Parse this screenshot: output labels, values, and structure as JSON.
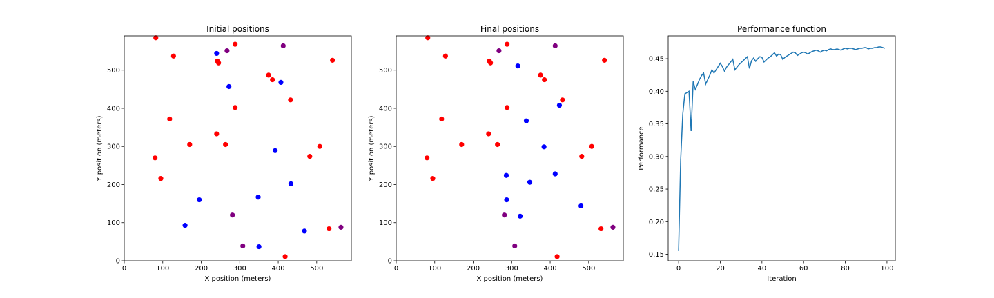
{
  "figure": {
    "background": "#ffffff"
  },
  "colors": {
    "red": "#ff0000",
    "blue": "#0000ff",
    "purple": "#800080",
    "line": "#1f77b4"
  },
  "chart_data": [
    {
      "type": "scatter",
      "title": "Initial positions",
      "xlabel": "X position (meters)",
      "ylabel": "Y position (meters)",
      "xlim": [
        0,
        590
      ],
      "ylim": [
        0,
        590
      ],
      "xticks": [
        0,
        100,
        200,
        300,
        400,
        500
      ],
      "yticks": [
        0,
        100,
        200,
        300,
        400,
        500
      ],
      "grid": false,
      "points": [
        {
          "x": 82,
          "y": 585,
          "color": "red"
        },
        {
          "x": 128,
          "y": 537,
          "color": "red"
        },
        {
          "x": 118,
          "y": 372,
          "color": "red"
        },
        {
          "x": 170,
          "y": 305,
          "color": "red"
        },
        {
          "x": 80,
          "y": 270,
          "color": "red"
        },
        {
          "x": 95,
          "y": 216,
          "color": "red"
        },
        {
          "x": 242,
          "y": 524,
          "color": "red"
        },
        {
          "x": 245,
          "y": 519,
          "color": "red"
        },
        {
          "x": 288,
          "y": 568,
          "color": "red"
        },
        {
          "x": 288,
          "y": 402,
          "color": "red"
        },
        {
          "x": 240,
          "y": 333,
          "color": "red"
        },
        {
          "x": 263,
          "y": 305,
          "color": "red"
        },
        {
          "x": 375,
          "y": 487,
          "color": "red"
        },
        {
          "x": 385,
          "y": 475,
          "color": "red"
        },
        {
          "x": 432,
          "y": 422,
          "color": "red"
        },
        {
          "x": 508,
          "y": 300,
          "color": "red"
        },
        {
          "x": 482,
          "y": 274,
          "color": "red"
        },
        {
          "x": 541,
          "y": 526,
          "color": "red"
        },
        {
          "x": 532,
          "y": 84,
          "color": "red"
        },
        {
          "x": 418,
          "y": 11,
          "color": "red"
        },
        {
          "x": 240,
          "y": 544,
          "color": "blue"
        },
        {
          "x": 272,
          "y": 457,
          "color": "blue"
        },
        {
          "x": 407,
          "y": 468,
          "color": "blue"
        },
        {
          "x": 392,
          "y": 289,
          "color": "blue"
        },
        {
          "x": 433,
          "y": 202,
          "color": "blue"
        },
        {
          "x": 348,
          "y": 167,
          "color": "blue"
        },
        {
          "x": 195,
          "y": 160,
          "color": "blue"
        },
        {
          "x": 158,
          "y": 93,
          "color": "blue"
        },
        {
          "x": 468,
          "y": 78,
          "color": "blue"
        },
        {
          "x": 350,
          "y": 37,
          "color": "blue"
        },
        {
          "x": 267,
          "y": 551,
          "color": "purple"
        },
        {
          "x": 413,
          "y": 564,
          "color": "purple"
        },
        {
          "x": 281,
          "y": 120,
          "color": "purple"
        },
        {
          "x": 308,
          "y": 39,
          "color": "purple"
        },
        {
          "x": 563,
          "y": 88,
          "color": "purple"
        }
      ]
    },
    {
      "type": "scatter",
      "title": "Final positions",
      "xlabel": "X position (meters)",
      "ylabel": "Y position (meters)",
      "xlim": [
        0,
        590
      ],
      "ylim": [
        0,
        590
      ],
      "xticks": [
        0,
        100,
        200,
        300,
        400,
        500
      ],
      "yticks": [
        0,
        100,
        200,
        300,
        400,
        500
      ],
      "grid": false,
      "points": [
        {
          "x": 82,
          "y": 585,
          "color": "red"
        },
        {
          "x": 128,
          "y": 537,
          "color": "red"
        },
        {
          "x": 118,
          "y": 372,
          "color": "red"
        },
        {
          "x": 170,
          "y": 305,
          "color": "red"
        },
        {
          "x": 80,
          "y": 270,
          "color": "red"
        },
        {
          "x": 95,
          "y": 216,
          "color": "red"
        },
        {
          "x": 242,
          "y": 524,
          "color": "red"
        },
        {
          "x": 245,
          "y": 519,
          "color": "red"
        },
        {
          "x": 288,
          "y": 568,
          "color": "red"
        },
        {
          "x": 288,
          "y": 402,
          "color": "red"
        },
        {
          "x": 240,
          "y": 333,
          "color": "red"
        },
        {
          "x": 263,
          "y": 305,
          "color": "red"
        },
        {
          "x": 375,
          "y": 487,
          "color": "red"
        },
        {
          "x": 385,
          "y": 475,
          "color": "red"
        },
        {
          "x": 432,
          "y": 422,
          "color": "red"
        },
        {
          "x": 508,
          "y": 300,
          "color": "red"
        },
        {
          "x": 482,
          "y": 274,
          "color": "red"
        },
        {
          "x": 541,
          "y": 526,
          "color": "red"
        },
        {
          "x": 532,
          "y": 84,
          "color": "red"
        },
        {
          "x": 418,
          "y": 11,
          "color": "red"
        },
        {
          "x": 316,
          "y": 511,
          "color": "blue"
        },
        {
          "x": 424,
          "y": 408,
          "color": "blue"
        },
        {
          "x": 338,
          "y": 367,
          "color": "blue"
        },
        {
          "x": 384,
          "y": 299,
          "color": "blue"
        },
        {
          "x": 286,
          "y": 224,
          "color": "blue"
        },
        {
          "x": 347,
          "y": 206,
          "color": "blue"
        },
        {
          "x": 413,
          "y": 228,
          "color": "blue"
        },
        {
          "x": 287,
          "y": 160,
          "color": "blue"
        },
        {
          "x": 480,
          "y": 144,
          "color": "blue"
        },
        {
          "x": 322,
          "y": 117,
          "color": "blue"
        },
        {
          "x": 267,
          "y": 551,
          "color": "purple"
        },
        {
          "x": 413,
          "y": 564,
          "color": "purple"
        },
        {
          "x": 281,
          "y": 120,
          "color": "purple"
        },
        {
          "x": 308,
          "y": 39,
          "color": "purple"
        },
        {
          "x": 563,
          "y": 88,
          "color": "purple"
        }
      ]
    },
    {
      "type": "line",
      "title": "Performance function",
      "xlabel": "Iteration",
      "ylabel": "Performance",
      "xlim": [
        -5,
        104
      ],
      "ylim": [
        0.14,
        0.485
      ],
      "xticks": [
        0,
        20,
        40,
        60,
        80,
        100
      ],
      "yticks": [
        0.15,
        0.2,
        0.25,
        0.3,
        0.35,
        0.4,
        0.45
      ],
      "ytick_labels": [
        "0.15",
        "0.20",
        "0.25",
        "0.30",
        "0.35",
        "0.40",
        "0.45"
      ],
      "grid": false,
      "series": [
        {
          "color": "line",
          "x": [
            0,
            1,
            2,
            3,
            4,
            5,
            6,
            7,
            8,
            9,
            10,
            11,
            12,
            13,
            14,
            15,
            16,
            17,
            18,
            19,
            20,
            21,
            22,
            23,
            24,
            25,
            26,
            27,
            28,
            29,
            30,
            31,
            32,
            33,
            34,
            35,
            36,
            37,
            38,
            39,
            40,
            41,
            42,
            43,
            44,
            45,
            46,
            47,
            48,
            49,
            50,
            51,
            52,
            53,
            54,
            55,
            56,
            57,
            58,
            59,
            60,
            61,
            62,
            63,
            64,
            65,
            66,
            67,
            68,
            69,
            70,
            71,
            72,
            73,
            74,
            75,
            76,
            77,
            78,
            79,
            80,
            81,
            82,
            83,
            84,
            85,
            86,
            87,
            88,
            89,
            90,
            91,
            92,
            93,
            94,
            95,
            96,
            97,
            98,
            99
          ],
          "y": [
            0.155,
            0.295,
            0.365,
            0.396,
            0.398,
            0.4,
            0.339,
            0.415,
            0.403,
            0.41,
            0.418,
            0.424,
            0.428,
            0.411,
            0.418,
            0.425,
            0.433,
            0.428,
            0.433,
            0.438,
            0.443,
            0.438,
            0.431,
            0.437,
            0.441,
            0.445,
            0.449,
            0.433,
            0.437,
            0.441,
            0.444,
            0.447,
            0.45,
            0.453,
            0.435,
            0.447,
            0.451,
            0.446,
            0.45,
            0.453,
            0.452,
            0.445,
            0.448,
            0.451,
            0.453,
            0.456,
            0.459,
            0.454,
            0.457,
            0.456,
            0.449,
            0.452,
            0.454,
            0.456,
            0.458,
            0.46,
            0.459,
            0.455,
            0.457,
            0.459,
            0.46,
            0.459,
            0.457,
            0.459,
            0.461,
            0.462,
            0.463,
            0.462,
            0.46,
            0.462,
            0.463,
            0.462,
            0.464,
            0.465,
            0.464,
            0.464,
            0.465,
            0.464,
            0.463,
            0.465,
            0.466,
            0.465,
            0.466,
            0.466,
            0.465,
            0.464,
            0.465,
            0.466,
            0.466,
            0.467,
            0.467,
            0.465,
            0.466,
            0.466,
            0.467,
            0.467,
            0.468,
            0.468,
            0.467,
            0.466
          ]
        }
      ]
    }
  ]
}
